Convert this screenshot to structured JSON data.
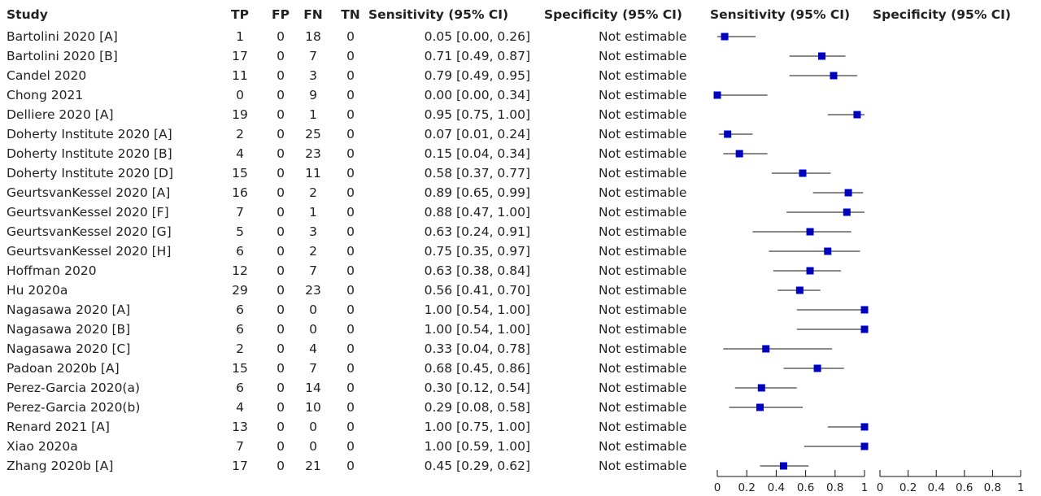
{
  "headers": {
    "study": "Study",
    "tp": "TP",
    "fp": "FP",
    "fn": "FN",
    "tn": "TN",
    "sens_ci": "Sensitivity (95% CI)",
    "spec_ci": "Specificity (95% CI)",
    "sens_plot": "Sensitivity (95% CI)",
    "spec_plot": "Specificity (95% CI)"
  },
  "chart_data": {
    "type": "forest",
    "title": "",
    "marker_color": "#0000c0",
    "sensitivity_axis": {
      "xlim": [
        0,
        1
      ],
      "ticks": [
        "0",
        "0.2",
        "0.4",
        "0.6",
        "0.8",
        "1"
      ]
    },
    "specificity_axis": {
      "xlim": [
        0,
        1
      ],
      "ticks": [
        "0",
        "0.2",
        "0.4",
        "0.6",
        "0.8",
        "1"
      ]
    },
    "rows": [
      {
        "study": "Bartolini 2020 [A]",
        "tp": "1",
        "fp": "0",
        "fn": "18",
        "tn": "0",
        "sens": 0.05,
        "lo": 0.0,
        "hi": 0.26,
        "sens_text": "0.05 [0.00, 0.26]",
        "spec_text": "Not estimable"
      },
      {
        "study": "Bartolini 2020 [B]",
        "tp": "17",
        "fp": "0",
        "fn": "7",
        "tn": "0",
        "sens": 0.71,
        "lo": 0.49,
        "hi": 0.87,
        "sens_text": "0.71 [0.49, 0.87]",
        "spec_text": "Not estimable"
      },
      {
        "study": "Candel 2020",
        "tp": "11",
        "fp": "0",
        "fn": "3",
        "tn": "0",
        "sens": 0.79,
        "lo": 0.49,
        "hi": 0.95,
        "sens_text": "0.79 [0.49, 0.95]",
        "spec_text": "Not estimable"
      },
      {
        "study": "Chong 2021",
        "tp": "0",
        "fp": "0",
        "fn": "9",
        "tn": "0",
        "sens": 0.0,
        "lo": 0.0,
        "hi": 0.34,
        "sens_text": "0.00 [0.00, 0.34]",
        "spec_text": "Not estimable"
      },
      {
        "study": "Delliere 2020 [A]",
        "tp": "19",
        "fp": "0",
        "fn": "1",
        "tn": "0",
        "sens": 0.95,
        "lo": 0.75,
        "hi": 1.0,
        "sens_text": "0.95 [0.75, 1.00]",
        "spec_text": "Not estimable"
      },
      {
        "study": "Doherty Institute 2020 [A]",
        "tp": "2",
        "fp": "0",
        "fn": "25",
        "tn": "0",
        "sens": 0.07,
        "lo": 0.01,
        "hi": 0.24,
        "sens_text": "0.07 [0.01, 0.24]",
        "spec_text": "Not estimable"
      },
      {
        "study": "Doherty Institute 2020 [B]",
        "tp": "4",
        "fp": "0",
        "fn": "23",
        "tn": "0",
        "sens": 0.15,
        "lo": 0.04,
        "hi": 0.34,
        "sens_text": "0.15 [0.04, 0.34]",
        "spec_text": "Not estimable"
      },
      {
        "study": "Doherty Institute 2020 [D]",
        "tp": "15",
        "fp": "0",
        "fn": "11",
        "tn": "0",
        "sens": 0.58,
        "lo": 0.37,
        "hi": 0.77,
        "sens_text": "0.58 [0.37, 0.77]",
        "spec_text": "Not estimable"
      },
      {
        "study": "GeurtsvanKessel 2020 [A]",
        "tp": "16",
        "fp": "0",
        "fn": "2",
        "tn": "0",
        "sens": 0.89,
        "lo": 0.65,
        "hi": 0.99,
        "sens_text": "0.89 [0.65, 0.99]",
        "spec_text": "Not estimable"
      },
      {
        "study": "GeurtsvanKessel 2020 [F]",
        "tp": "7",
        "fp": "0",
        "fn": "1",
        "tn": "0",
        "sens": 0.88,
        "lo": 0.47,
        "hi": 1.0,
        "sens_text": "0.88 [0.47, 1.00]",
        "spec_text": "Not estimable"
      },
      {
        "study": "GeurtsvanKessel 2020 [G]",
        "tp": "5",
        "fp": "0",
        "fn": "3",
        "tn": "0",
        "sens": 0.63,
        "lo": 0.24,
        "hi": 0.91,
        "sens_text": "0.63 [0.24, 0.91]",
        "spec_text": "Not estimable"
      },
      {
        "study": "GeurtsvanKessel 2020 [H]",
        "tp": "6",
        "fp": "0",
        "fn": "2",
        "tn": "0",
        "sens": 0.75,
        "lo": 0.35,
        "hi": 0.97,
        "sens_text": "0.75 [0.35, 0.97]",
        "spec_text": "Not estimable"
      },
      {
        "study": "Hoffman 2020",
        "tp": "12",
        "fp": "0",
        "fn": "7",
        "tn": "0",
        "sens": 0.63,
        "lo": 0.38,
        "hi": 0.84,
        "sens_text": "0.63 [0.38, 0.84]",
        "spec_text": "Not estimable"
      },
      {
        "study": "Hu 2020a",
        "tp": "29",
        "fp": "0",
        "fn": "23",
        "tn": "0",
        "sens": 0.56,
        "lo": 0.41,
        "hi": 0.7,
        "sens_text": "0.56 [0.41, 0.70]",
        "spec_text": "Not estimable"
      },
      {
        "study": "Nagasawa 2020 [A]",
        "tp": "6",
        "fp": "0",
        "fn": "0",
        "tn": "0",
        "sens": 1.0,
        "lo": 0.54,
        "hi": 1.0,
        "sens_text": "1.00 [0.54, 1.00]",
        "spec_text": "Not estimable"
      },
      {
        "study": "Nagasawa 2020 [B]",
        "tp": "6",
        "fp": "0",
        "fn": "0",
        "tn": "0",
        "sens": 1.0,
        "lo": 0.54,
        "hi": 1.0,
        "sens_text": "1.00 [0.54, 1.00]",
        "spec_text": "Not estimable"
      },
      {
        "study": "Nagasawa 2020 [C]",
        "tp": "2",
        "fp": "0",
        "fn": "4",
        "tn": "0",
        "sens": 0.33,
        "lo": 0.04,
        "hi": 0.78,
        "sens_text": "0.33 [0.04, 0.78]",
        "spec_text": "Not estimable"
      },
      {
        "study": "Padoan 2020b [A]",
        "tp": "15",
        "fp": "0",
        "fn": "7",
        "tn": "0",
        "sens": 0.68,
        "lo": 0.45,
        "hi": 0.86,
        "sens_text": "0.68 [0.45, 0.86]",
        "spec_text": "Not estimable"
      },
      {
        "study": "Perez-Garcia 2020(a)",
        "tp": "6",
        "fp": "0",
        "fn": "14",
        "tn": "0",
        "sens": 0.3,
        "lo": 0.12,
        "hi": 0.54,
        "sens_text": "0.30 [0.12, 0.54]",
        "spec_text": "Not estimable"
      },
      {
        "study": "Perez-Garcia 2020(b)",
        "tp": "4",
        "fp": "0",
        "fn": "10",
        "tn": "0",
        "sens": 0.29,
        "lo": 0.08,
        "hi": 0.58,
        "sens_text": "0.29 [0.08, 0.58]",
        "spec_text": "Not estimable"
      },
      {
        "study": "Renard 2021 [A]",
        "tp": "13",
        "fp": "0",
        "fn": "0",
        "tn": "0",
        "sens": 1.0,
        "lo": 0.75,
        "hi": 1.0,
        "sens_text": "1.00 [0.75, 1.00]",
        "spec_text": "Not estimable"
      },
      {
        "study": "Xiao 2020a",
        "tp": "7",
        "fp": "0",
        "fn": "0",
        "tn": "0",
        "sens": 1.0,
        "lo": 0.59,
        "hi": 1.0,
        "sens_text": "1.00 [0.59, 1.00]",
        "spec_text": "Not estimable"
      },
      {
        "study": "Zhang 2020b [A]",
        "tp": "17",
        "fp": "0",
        "fn": "21",
        "tn": "0",
        "sens": 0.45,
        "lo": 0.29,
        "hi": 0.62,
        "sens_text": "0.45 [0.29, 0.62]",
        "spec_text": "Not estimable"
      }
    ]
  }
}
